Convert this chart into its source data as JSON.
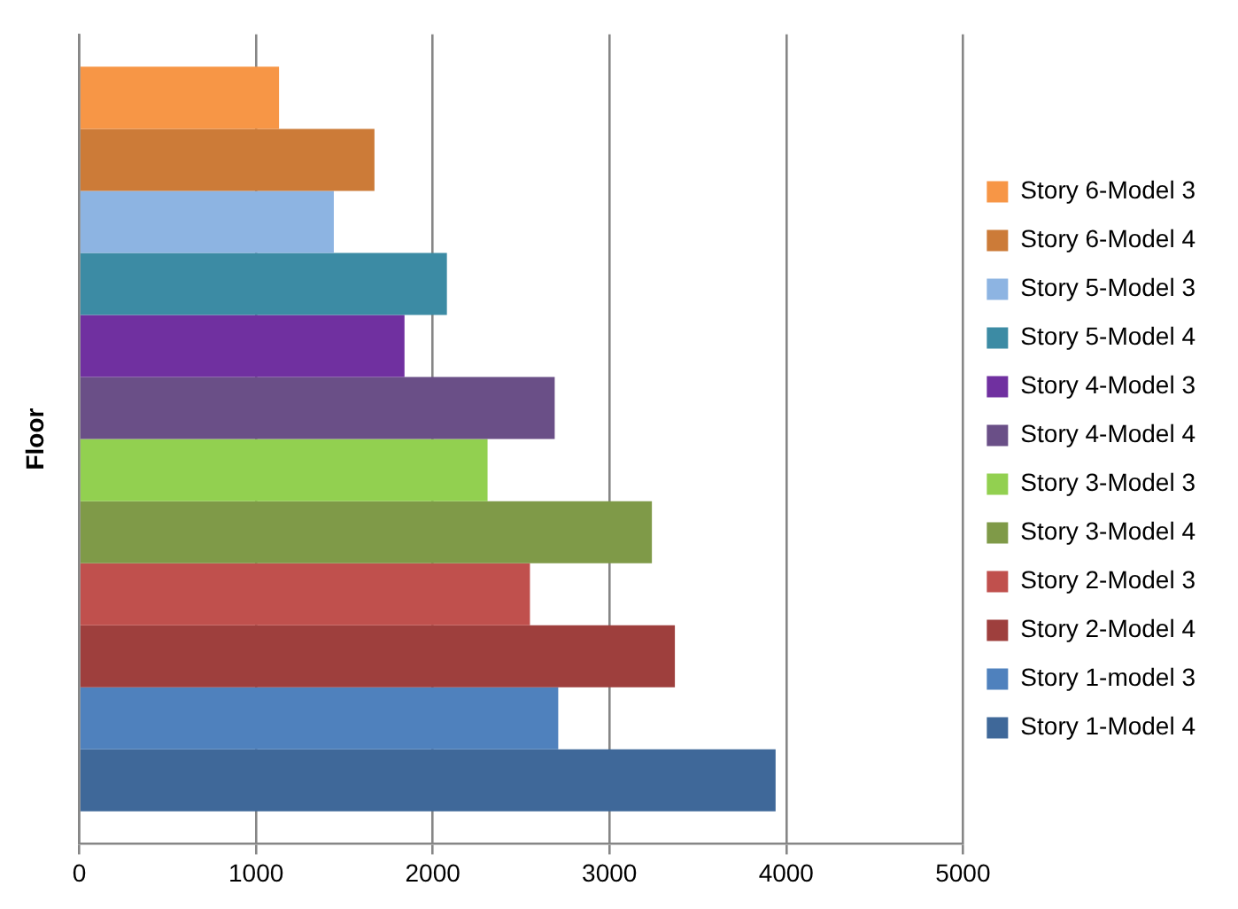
{
  "chart_data": {
    "type": "bar",
    "orientation": "horizontal",
    "ylabel": "Floor",
    "categories": [
      null
    ],
    "series": [
      {
        "name": "Story 1-Model 4",
        "color": "#3f6899",
        "values": [
          3940
        ]
      },
      {
        "name": "Story 1-model 3",
        "color": "#4f81bd",
        "values": [
          2710
        ]
      },
      {
        "name": "Story 2-Model 4",
        "color": "#9e3f3d",
        "values": [
          3370
        ]
      },
      {
        "name": "Story 2-Model 3",
        "color": "#c0504d",
        "values": [
          2550
        ]
      },
      {
        "name": "Story 3-Model 4",
        "color": "#7f9a48",
        "values": [
          3240
        ]
      },
      {
        "name": "Story 3-Model 3",
        "color": "#92d050",
        "values": [
          2310
        ]
      },
      {
        "name": "Story 4-Model 4",
        "color": "#6a4f87",
        "values": [
          2690
        ]
      },
      {
        "name": "Story 4-Model 3",
        "color": "#7030a0",
        "values": [
          1840
        ]
      },
      {
        "name": "Story 5-Model 4",
        "color": "#3c8ba4",
        "values": [
          2080
        ]
      },
      {
        "name": "Story 5-Model 3",
        "color": "#8db4e2",
        "values": [
          1440
        ]
      },
      {
        "name": "Story 6-Model 4",
        "color": "#cc7b38",
        "values": [
          1670
        ]
      },
      {
        "name": "Story 6-Model 3",
        "color": "#f79646",
        "values": [
          1130
        ]
      }
    ],
    "xlim": [
      0,
      5000
    ],
    "xticks": [
      0,
      1000,
      2000,
      3000,
      4000,
      5000
    ],
    "grid": "x",
    "legend": "right"
  }
}
